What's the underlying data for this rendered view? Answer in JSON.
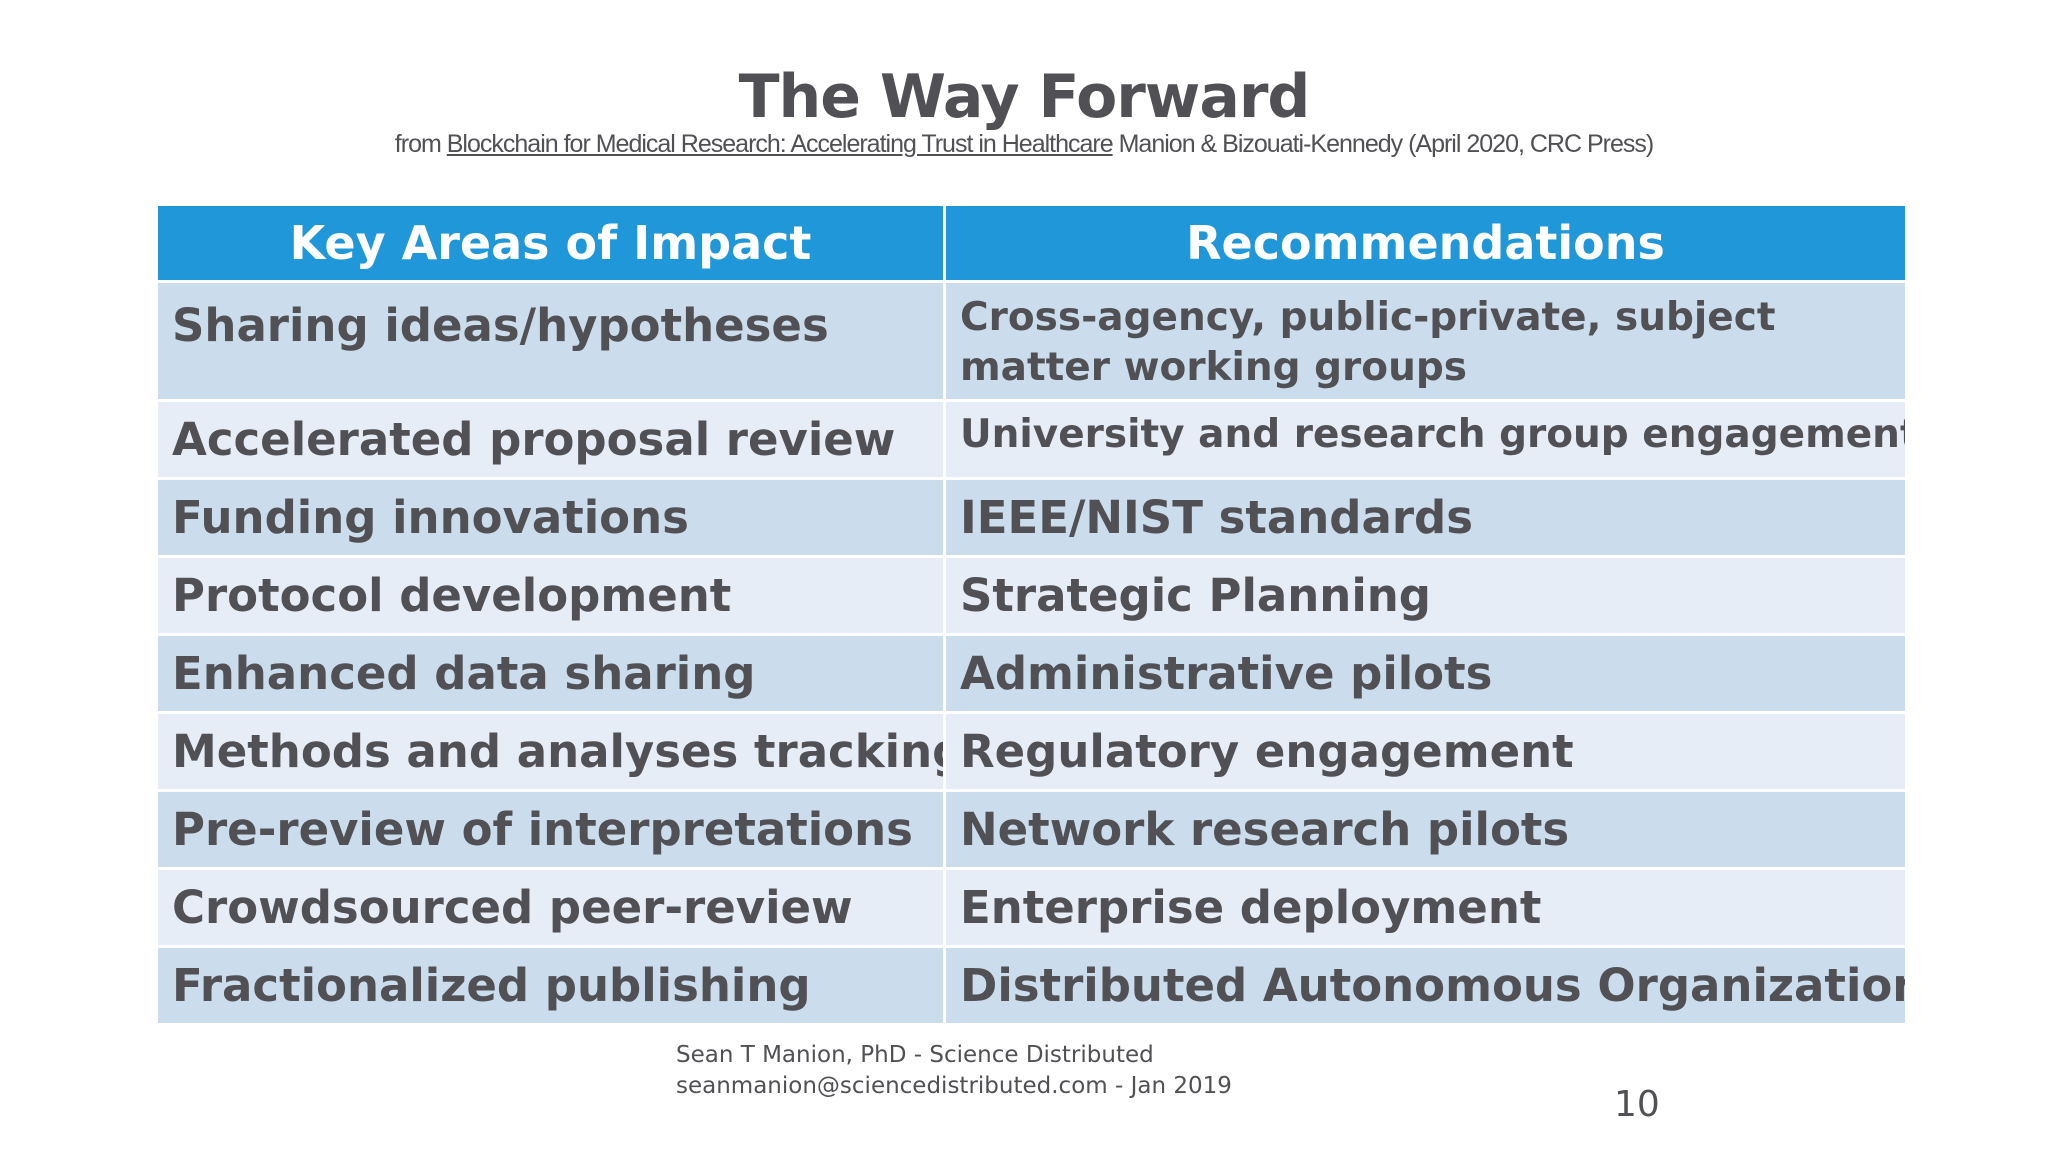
{
  "slide": {
    "title": "The Way Forward",
    "subtitle": {
      "prefix": "from",
      "book_title": "Blockchain for Medical Research: Accelerating Trust in Healthcare",
      "suffix": "Manion & Bizouati-Kennedy (April 2020, CRC Press)"
    },
    "table": {
      "headers": [
        "Key Areas of Impact",
        "Recommendations"
      ],
      "rows": [
        {
          "area": "Sharing ideas/hypotheses",
          "recommendation": "Cross-agency, public-private, subject matter working groups"
        },
        {
          "area": "Accelerated proposal review",
          "recommendation": "University and research group engagement"
        },
        {
          "area": "Funding innovations",
          "recommendation": "IEEE/NIST standards"
        },
        {
          "area": "Protocol development",
          "recommendation": "Strategic Planning"
        },
        {
          "area": "Enhanced data sharing",
          "recommendation": "Administrative pilots"
        },
        {
          "area": "Methods and analyses tracking",
          "recommendation": "Regulatory engagement"
        },
        {
          "area": "Pre-review of interpretations",
          "recommendation": "Network research pilots"
        },
        {
          "area": "Crowdsourced peer-review",
          "recommendation": "Enterprise deployment"
        },
        {
          "area": "Fractionalized publishing",
          "recommendation": "Distributed Autonomous Organization"
        }
      ]
    },
    "footer": {
      "line1": "Sean T Manion, PhD - Science Distributed",
      "line2": "seanmanion@sciencedistributed.com  - Jan 2019"
    },
    "page_number": "10",
    "colors": {
      "header_bg": "#1f97d8",
      "row_dark": "#cbdcec",
      "row_light": "#e6edf7",
      "text": "#505055"
    }
  }
}
